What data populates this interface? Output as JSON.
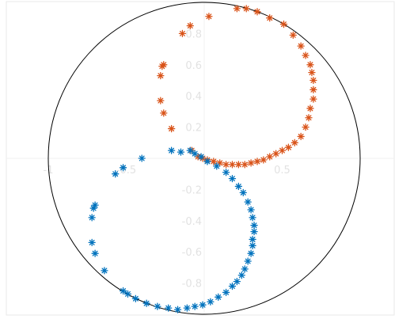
{
  "chart_data": {
    "type": "scatter",
    "title": "",
    "xlabel": "",
    "ylabel": "",
    "xlim": [
      -1,
      1
    ],
    "ylim": [
      -1,
      1
    ],
    "grid": true,
    "marker": "asterisk",
    "unit_circle": true,
    "x_ticks": [
      {
        "value": -1,
        "label": "-1"
      },
      {
        "value": -0.5,
        "label": "-0.5"
      },
      {
        "value": 0.5,
        "label": "0.5"
      }
    ],
    "y_ticks": [
      {
        "value": 0.8,
        "label": "0.8"
      },
      {
        "value": 0.6,
        "label": "0.6"
      },
      {
        "value": 0.4,
        "label": "0.4"
      },
      {
        "value": 0.2,
        "label": "0.2"
      },
      {
        "value": -0.2,
        "label": "-0.2"
      },
      {
        "value": -0.4,
        "label": "-0.4"
      },
      {
        "value": -0.6,
        "label": "-0.6"
      },
      {
        "value": -0.8,
        "label": "-0.8"
      }
    ],
    "series": [
      {
        "color": "#d95319",
        "points": [
          [
            0.03,
            0.91
          ],
          [
            -0.09,
            0.85
          ],
          [
            -0.14,
            0.8
          ],
          [
            0.21,
            0.96
          ],
          [
            0.27,
            0.96
          ],
          [
            0.34,
            0.94
          ],
          [
            0.42,
            0.9
          ],
          [
            0.51,
            0.86
          ],
          [
            0.57,
            0.79
          ],
          [
            0.62,
            0.72
          ],
          [
            0.65,
            0.66
          ],
          [
            0.68,
            0.6
          ],
          [
            0.69,
            0.55
          ],
          [
            0.7,
            0.5
          ],
          [
            0.7,
            0.44
          ],
          [
            0.7,
            0.38
          ],
          [
            0.68,
            0.32
          ],
          [
            0.67,
            0.26
          ],
          [
            0.65,
            0.2
          ],
          [
            0.62,
            0.14
          ],
          [
            0.58,
            0.1
          ],
          [
            0.54,
            0.07
          ],
          [
            0.5,
            0.05
          ],
          [
            0.46,
            0.03
          ],
          [
            0.42,
            0.01
          ],
          [
            0.38,
            -0.01
          ],
          [
            0.34,
            -0.02
          ],
          [
            0.3,
            -0.03
          ],
          [
            0.26,
            -0.04
          ],
          [
            0.22,
            -0.04
          ],
          [
            0.18,
            -0.04
          ],
          [
            0.14,
            -0.04
          ],
          [
            0.1,
            -0.03
          ],
          [
            0.06,
            -0.02
          ],
          [
            0.02,
            -0.01
          ],
          [
            -0.01,
            0.0
          ],
          [
            -0.04,
            0.01
          ],
          [
            -0.08,
            0.05
          ],
          [
            -0.26,
            0.6
          ],
          [
            -0.27,
            0.59
          ],
          [
            -0.28,
            0.53
          ],
          [
            -0.28,
            0.37
          ],
          [
            -0.26,
            0.29
          ],
          [
            -0.21,
            0.19
          ]
        ]
      },
      {
        "color": "#0072bd",
        "points": [
          [
            -0.09,
            0.05
          ],
          [
            -0.15,
            0.04
          ],
          [
            -0.21,
            0.05
          ],
          [
            -0.4,
            0.0
          ],
          [
            -0.52,
            -0.06
          ],
          [
            -0.57,
            -0.1
          ],
          [
            -0.7,
            -0.3
          ],
          [
            -0.71,
            -0.32
          ],
          [
            -0.72,
            -0.38
          ],
          [
            -0.72,
            -0.54
          ],
          [
            -0.7,
            -0.61
          ],
          [
            -0.64,
            -0.72
          ],
          [
            -0.52,
            -0.85
          ],
          [
            -0.49,
            -0.87
          ],
          [
            -0.44,
            -0.9
          ],
          [
            -0.37,
            -0.93
          ],
          [
            -0.3,
            -0.95
          ],
          [
            -0.23,
            -0.96
          ],
          [
            -0.17,
            -0.97
          ],
          [
            -0.11,
            -0.96
          ],
          [
            -0.06,
            -0.95
          ],
          [
            -0.01,
            -0.94
          ],
          [
            0.04,
            -0.92
          ],
          [
            0.09,
            -0.89
          ],
          [
            0.14,
            -0.86
          ],
          [
            0.18,
            -0.82
          ],
          [
            0.21,
            -0.79
          ],
          [
            0.24,
            -0.75
          ],
          [
            0.26,
            -0.71
          ],
          [
            0.28,
            -0.66
          ],
          [
            0.3,
            -0.61
          ],
          [
            0.31,
            -0.56
          ],
          [
            0.31,
            -0.52
          ],
          [
            0.32,
            -0.47
          ],
          [
            0.32,
            -0.43
          ],
          [
            0.31,
            -0.38
          ],
          [
            0.3,
            -0.33
          ],
          [
            0.28,
            -0.28
          ],
          [
            0.25,
            -0.22
          ],
          [
            0.22,
            -0.18
          ],
          [
            0.18,
            -0.13
          ],
          [
            0.14,
            -0.09
          ],
          [
            0.08,
            -0.05
          ],
          [
            0.02,
            -0.02
          ],
          [
            -0.02,
            0.01
          ],
          [
            -0.06,
            0.03
          ]
        ]
      }
    ]
  }
}
